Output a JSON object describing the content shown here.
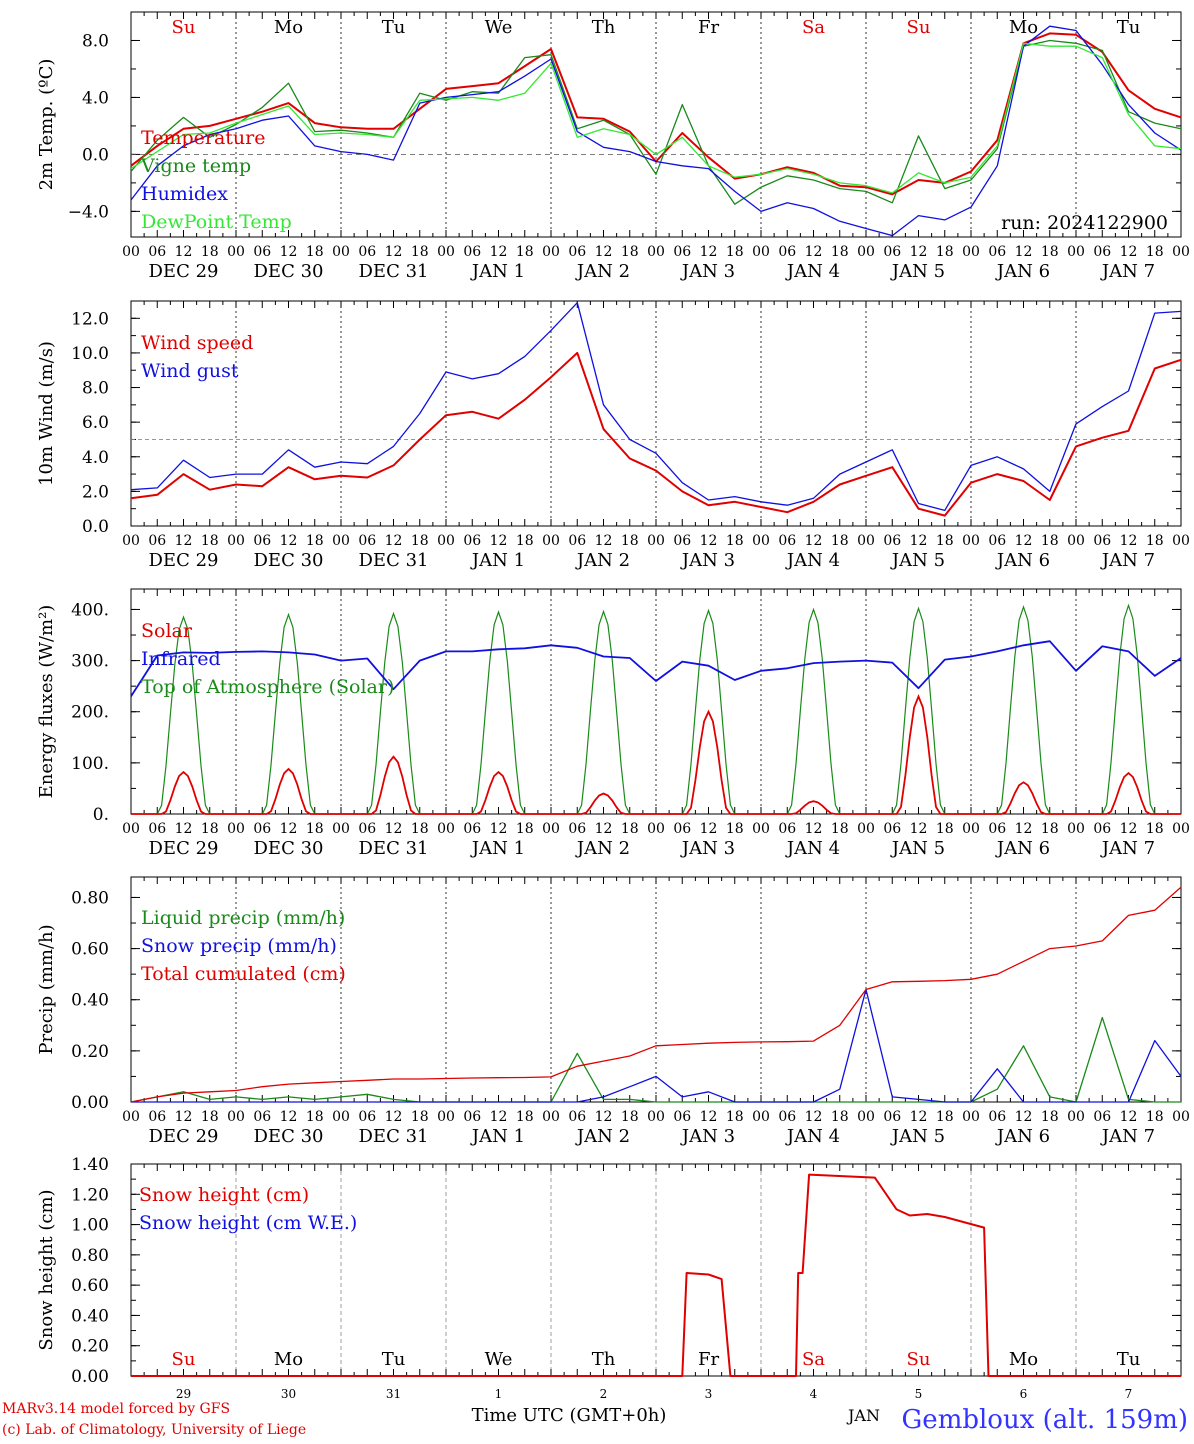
{
  "days_top": [
    "Su",
    "Mo",
    "Tu",
    "We",
    "Th",
    "Fr",
    "Sa",
    "Su",
    "Mo",
    "Tu"
  ],
  "days_colors": [
    "#e00000",
    "#000000",
    "#000000",
    "#000000",
    "#000000",
    "#000000",
    "#e00000",
    "#e00000",
    "#000000",
    "#000000"
  ],
  "hour_labels": [
    "00",
    "06",
    "12",
    "18"
  ],
  "final_hour_label": "00",
  "date_labels": [
    "DEC 29",
    "DEC 30",
    "DEC 31",
    "JAN  1",
    "JAN  2",
    "JAN  3",
    "JAN  4",
    "JAN  5",
    "JAN  6",
    "JAN  7"
  ],
  "run_label": "run: 2024122900",
  "bottom_days": [
    "Su",
    "Mo",
    "Tu",
    "We",
    "Th",
    "Fr",
    "Sa",
    "Su",
    "Mo",
    "Tu"
  ],
  "bottom_dates": [
    "29",
    "30",
    "31",
    "1",
    "2",
    "3",
    "4",
    "5",
    "6",
    "7"
  ],
  "month_label": "JAN",
  "x_title": "Time UTC (GMT+0h)",
  "credit_line1": "MARv3.14 model forced by GFS",
  "credit_line2": "(c) Lab. of Climatology, University of Liege",
  "station": "Gembloux (alt. 159m)",
  "colors": {
    "red": "#e00000",
    "green": "#1a8a1a",
    "blue": "#1010e0",
    "lime": "#33e833",
    "bluetext": "#3333ff"
  },
  "chart_data": [
    {
      "type": "line",
      "id": "temp",
      "ylabel": "2m Temp. (ºC)",
      "ylim": [
        -5.8,
        10.0
      ],
      "yticks": [
        -4.0,
        0.0,
        4.0,
        8.0
      ],
      "ytick_labels": [
        "−4.0",
        "0.0",
        "4.0",
        "8.0"
      ],
      "zero_line": 0.0,
      "x_hours": [
        0,
        6,
        12,
        18,
        24,
        30,
        36,
        42,
        48,
        54,
        60,
        66,
        72,
        78,
        84,
        90,
        96,
        102,
        108,
        114,
        120,
        126,
        132,
        138,
        144,
        150,
        156,
        162,
        168,
        174,
        180,
        186,
        192,
        198,
        204,
        210,
        216,
        222,
        228,
        234,
        240
      ],
      "series": [
        {
          "name": "Temperature",
          "color": "#e00000",
          "values": [
            -0.8,
            0.6,
            1.8,
            2.0,
            2.5,
            3.0,
            3.6,
            2.2,
            1.9,
            1.8,
            1.8,
            3.2,
            4.6,
            4.8,
            5.0,
            6.2,
            7.4,
            2.6,
            2.5,
            1.6,
            -0.5,
            1.5,
            -0.2,
            -1.7,
            -1.4,
            -0.9,
            -1.3,
            -2.2,
            -2.3,
            -2.8,
            -1.8,
            -2.0,
            -1.2,
            1.0,
            7.8,
            8.5,
            8.4,
            7.2,
            4.5,
            3.2,
            2.6
          ]
        },
        {
          "name": "Vigne temp",
          "color": "#1a8a1a",
          "values": [
            -1.2,
            1.0,
            2.6,
            1.2,
            2.1,
            3.3,
            5.0,
            1.6,
            1.7,
            1.5,
            1.2,
            4.3,
            3.8,
            4.4,
            4.3,
            6.8,
            7.0,
            1.8,
            2.4,
            1.4,
            -1.4,
            3.5,
            -0.8,
            -3.5,
            -2.3,
            -1.5,
            -1.8,
            -2.4,
            -2.6,
            -3.4,
            1.3,
            -2.4,
            -1.8,
            0.4,
            7.6,
            8.0,
            7.8,
            7.3,
            3.0,
            2.2,
            1.8
          ]
        },
        {
          "name": "Humidex",
          "color": "#1010e0",
          "values": [
            -3.2,
            -0.8,
            0.6,
            1.4,
            1.8,
            2.4,
            2.7,
            0.6,
            0.2,
            0.0,
            -0.4,
            3.6,
            4.0,
            4.2,
            4.4,
            5.5,
            6.7,
            1.6,
            0.5,
            0.2,
            -0.5,
            -0.8,
            -1.0,
            -2.6,
            -4.0,
            -3.4,
            -3.8,
            -4.7,
            -5.2,
            -5.7,
            -4.3,
            -4.6,
            -3.7,
            -0.8,
            7.6,
            9.0,
            8.7,
            6.3,
            3.5,
            1.5,
            0.3
          ]
        },
        {
          "name": "DewPoint Temp",
          "color": "#33e833",
          "values": [
            -1.0,
            0.2,
            1.4,
            1.5,
            2.2,
            2.8,
            3.4,
            1.4,
            1.5,
            1.4,
            1.2,
            3.8,
            3.9,
            4.0,
            3.8,
            4.3,
            6.4,
            1.2,
            1.8,
            1.4,
            0.0,
            1.2,
            -0.8,
            -1.6,
            -1.4,
            -1.0,
            -1.4,
            -2.0,
            -2.2,
            -2.7,
            -1.3,
            -2.0,
            -1.6,
            0.6,
            7.8,
            7.6,
            7.6,
            6.8,
            2.8,
            0.6,
            0.4
          ]
        }
      ]
    },
    {
      "type": "line",
      "id": "wind",
      "ylabel": "10m Wind (m/s)",
      "ylim": [
        0,
        13.0
      ],
      "yticks": [
        0,
        2,
        4,
        6,
        8,
        10,
        12
      ],
      "ytick_labels": [
        "0.0",
        "2.0",
        "4.0",
        "6.0",
        "8.0",
        "10.0",
        "12.0"
      ],
      "ref_line": 5.0,
      "x_hours": [
        0,
        6,
        12,
        18,
        24,
        30,
        36,
        42,
        48,
        54,
        60,
        66,
        72,
        78,
        84,
        90,
        96,
        102,
        108,
        114,
        120,
        126,
        132,
        138,
        144,
        150,
        156,
        162,
        168,
        174,
        180,
        186,
        192,
        198,
        204,
        210,
        216,
        222,
        228,
        234,
        240
      ],
      "series": [
        {
          "name": "Wind speed",
          "color": "#e00000",
          "values": [
            1.6,
            1.8,
            3.0,
            2.1,
            2.4,
            2.3,
            3.4,
            2.7,
            2.9,
            2.8,
            3.5,
            5.0,
            6.4,
            6.6,
            6.2,
            7.3,
            8.6,
            10.0,
            5.6,
            3.9,
            3.2,
            2.0,
            1.2,
            1.4,
            1.1,
            0.8,
            1.4,
            2.4,
            2.9,
            3.4,
            1.0,
            0.6,
            2.5,
            3.0,
            2.6,
            1.5,
            4.6,
            5.1,
            5.5,
            9.1,
            9.6
          ]
        },
        {
          "name": "Wind gust",
          "color": "#1010e0",
          "values": [
            2.1,
            2.2,
            3.8,
            2.8,
            3.0,
            3.0,
            4.4,
            3.4,
            3.7,
            3.6,
            4.6,
            6.5,
            8.9,
            8.5,
            8.8,
            9.8,
            11.3,
            12.9,
            7.0,
            5.0,
            4.2,
            2.5,
            1.5,
            1.7,
            1.4,
            1.2,
            1.6,
            3.0,
            3.7,
            4.4,
            1.3,
            0.9,
            3.5,
            4.0,
            3.3,
            2.0,
            5.9,
            6.9,
            7.8,
            12.3,
            12.4
          ]
        }
      ]
    },
    {
      "type": "line",
      "id": "energy",
      "ylabel": "Energy fluxes (W/m²)",
      "ylim": [
        0,
        440
      ],
      "yticks": [
        0,
        100,
        200,
        300,
        400
      ],
      "ytick_labels": [
        "0.",
        "100.",
        "200.",
        "300.",
        "400."
      ],
      "solar_peaks_w_m2": [
        82,
        88,
        112,
        82,
        40,
        200,
        25,
        230,
        62,
        80
      ],
      "toa_peaks_w_m2": [
        385,
        390,
        392,
        395,
        396,
        398,
        400,
        402,
        405,
        408
      ],
      "infrared_x_hours": [
        0,
        6,
        12,
        18,
        24,
        30,
        36,
        42,
        48,
        54,
        60,
        66,
        72,
        78,
        84,
        90,
        96,
        102,
        108,
        114,
        120,
        126,
        132,
        138,
        144,
        150,
        156,
        162,
        168,
        174,
        180,
        186,
        192,
        198,
        204,
        210,
        216,
        222,
        228,
        234,
        240
      ],
      "infrared_values": [
        230,
        310,
        316,
        315,
        317,
        318,
        316,
        312,
        300,
        304,
        244,
        300,
        318,
        318,
        322,
        324,
        330,
        325,
        308,
        305,
        260,
        298,
        290,
        262,
        280,
        285,
        295,
        298,
        300,
        296,
        246,
        302,
        308,
        318,
        330,
        338,
        280,
        328,
        318,
        270,
        305
      ],
      "series_names": [
        "Solar",
        "Infrared",
        "Top of Atmosphere (Solar)"
      ],
      "series_colors": [
        "#e00000",
        "#1010e0",
        "#1a8a1a"
      ]
    },
    {
      "type": "line",
      "id": "precip",
      "ylabel": "Precip (mm/h)",
      "ylim": [
        0,
        0.88
      ],
      "yticks": [
        0,
        0.2,
        0.4,
        0.6,
        0.8
      ],
      "ytick_labels": [
        "0.00",
        "0.20",
        "0.40",
        "0.60",
        "0.80"
      ],
      "x_hours": [
        0,
        6,
        12,
        18,
        24,
        30,
        36,
        42,
        48,
        54,
        60,
        66,
        72,
        78,
        84,
        90,
        96,
        102,
        108,
        114,
        120,
        126,
        132,
        138,
        144,
        150,
        156,
        162,
        168,
        174,
        180,
        186,
        192,
        198,
        204,
        210,
        216,
        222,
        228,
        234,
        240
      ],
      "series": [
        {
          "name": "Liquid precip (mm/h)",
          "color": "#1a8a1a",
          "values": [
            0.0,
            0.02,
            0.04,
            0.01,
            0.02,
            0.01,
            0.02,
            0.01,
            0.02,
            0.03,
            0.01,
            0.0,
            0.0,
            0.0,
            0.0,
            0.0,
            0.0,
            0.19,
            0.01,
            0.01,
            0.0,
            0.0,
            0.0,
            0.0,
            0.0,
            0.0,
            0.0,
            0.0,
            0.0,
            0.0,
            0.0,
            0.0,
            0.0,
            0.05,
            0.22,
            0.02,
            0.0,
            0.33,
            0.01,
            0.0,
            0.0
          ]
        },
        {
          "name": "Snow precip (mm/h)",
          "color": "#1010e0",
          "values": [
            0.0,
            0.0,
            0.0,
            0.0,
            0.0,
            0.0,
            0.0,
            0.0,
            0.0,
            0.0,
            0.0,
            0.0,
            0.0,
            0.0,
            0.0,
            0.0,
            0.0,
            0.0,
            0.02,
            0.06,
            0.1,
            0.02,
            0.04,
            0.0,
            0.0,
            0.0,
            0.0,
            0.05,
            0.44,
            0.02,
            0.01,
            0.0,
            0.0,
            0.13,
            0.0,
            0.0,
            0.0,
            0.0,
            0.0,
            0.24,
            0.1
          ]
        },
        {
          "name": "Total cumulated (cm)",
          "color": "#e00000",
          "values": [
            0.0,
            0.02,
            0.035,
            0.04,
            0.045,
            0.06,
            0.07,
            0.075,
            0.08,
            0.085,
            0.09,
            0.09,
            0.092,
            0.094,
            0.095,
            0.096,
            0.098,
            0.14,
            0.16,
            0.18,
            0.22,
            0.225,
            0.23,
            0.233,
            0.235,
            0.236,
            0.238,
            0.3,
            0.44,
            0.47,
            0.472,
            0.475,
            0.48,
            0.5,
            0.55,
            0.6,
            0.61,
            0.63,
            0.73,
            0.75,
            0.84
          ]
        }
      ]
    },
    {
      "type": "line",
      "id": "snow",
      "ylabel": "Snow height (cm)",
      "ylim": [
        0,
        1.4
      ],
      "yticks": [
        0,
        0.2,
        0.4,
        0.6,
        0.8,
        1.0,
        1.2,
        1.4
      ],
      "ytick_labels": [
        "0.00",
        "0.20",
        "0.40",
        "0.60",
        "0.80",
        "1.00",
        "1.20",
        "1.40"
      ],
      "x_hours": [
        0,
        120,
        126,
        127,
        132,
        135,
        137,
        144,
        150,
        152,
        152.5,
        153.5,
        155,
        170,
        175,
        178,
        182,
        186,
        195,
        196,
        240
      ],
      "series": [
        {
          "name": "Snow height (cm)",
          "color": "#e00000",
          "values": [
            0,
            0,
            0,
            0.68,
            0.67,
            0.64,
            0,
            0,
            0,
            0,
            0.68,
            0.68,
            1.33,
            1.31,
            1.1,
            1.06,
            1.07,
            1.05,
            0.98,
            0,
            0
          ]
        },
        {
          "name": "Snow height (cm W.E.)",
          "color": "#1010e0",
          "values": []
        }
      ]
    }
  ]
}
